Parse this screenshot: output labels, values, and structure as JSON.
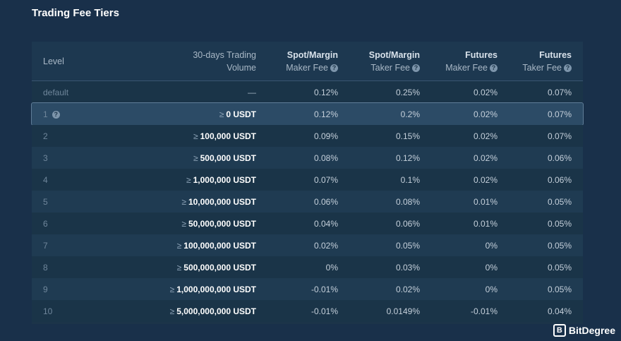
{
  "title": "Trading Fee Tiers",
  "headers": {
    "level": "Level",
    "volume_line1": "30-days Trading",
    "volume_line2": "Volume",
    "spot_maker_line1": "Spot/Margin",
    "spot_maker_line2": "Maker Fee",
    "spot_taker_line1": "Spot/Margin",
    "spot_taker_line2": "Taker Fee",
    "fut_maker_line1": "Futures",
    "fut_maker_line2": "Maker Fee",
    "fut_taker_line1": "Futures",
    "fut_taker_line2": "Taker Fee",
    "help_glyph": "?"
  },
  "ge_symbol": "≥",
  "rows": [
    {
      "level": "default",
      "volume": "—",
      "spot_maker": "0.12%",
      "spot_taker": "0.25%",
      "fut_maker": "0.02%",
      "fut_taker": "0.07%"
    },
    {
      "level": "1",
      "volume": "0 USDT",
      "spot_maker": "0.12%",
      "spot_taker": "0.2%",
      "fut_maker": "0.02%",
      "fut_taker": "0.07%"
    },
    {
      "level": "2",
      "volume": "100,000 USDT",
      "spot_maker": "0.09%",
      "spot_taker": "0.15%",
      "fut_maker": "0.02%",
      "fut_taker": "0.07%"
    },
    {
      "level": "3",
      "volume": "500,000 USDT",
      "spot_maker": "0.08%",
      "spot_taker": "0.12%",
      "fut_maker": "0.02%",
      "fut_taker": "0.06%"
    },
    {
      "level": "4",
      "volume": "1,000,000 USDT",
      "spot_maker": "0.07%",
      "spot_taker": "0.1%",
      "fut_maker": "0.02%",
      "fut_taker": "0.06%"
    },
    {
      "level": "5",
      "volume": "10,000,000 USDT",
      "spot_maker": "0.06%",
      "spot_taker": "0.08%",
      "fut_maker": "0.01%",
      "fut_taker": "0.05%"
    },
    {
      "level": "6",
      "volume": "50,000,000 USDT",
      "spot_maker": "0.04%",
      "spot_taker": "0.06%",
      "fut_maker": "0.01%",
      "fut_taker": "0.05%"
    },
    {
      "level": "7",
      "volume": "100,000,000 USDT",
      "spot_maker": "0.02%",
      "spot_taker": "0.05%",
      "fut_maker": "0%",
      "fut_taker": "0.05%"
    },
    {
      "level": "8",
      "volume": "500,000,000 USDT",
      "spot_maker": "0%",
      "spot_taker": "0.03%",
      "fut_maker": "0%",
      "fut_taker": "0.05%"
    },
    {
      "level": "9",
      "volume": "1,000,000,000 USDT",
      "spot_maker": "-0.01%",
      "spot_taker": "0.02%",
      "fut_maker": "0%",
      "fut_taker": "0.05%"
    },
    {
      "level": "10",
      "volume": "5,000,000,000 USDT",
      "spot_maker": "-0.01%",
      "spot_taker": "0.0149%",
      "fut_maker": "-0.01%",
      "fut_taker": "0.04%"
    }
  ],
  "watermark": {
    "text": "BitDegree",
    "icon": "shield-b-logo-icon",
    "glyph": "B"
  },
  "colors": {
    "background": "#19304a",
    "table": "#1c3449",
    "selected_row": "#2c4b66"
  }
}
